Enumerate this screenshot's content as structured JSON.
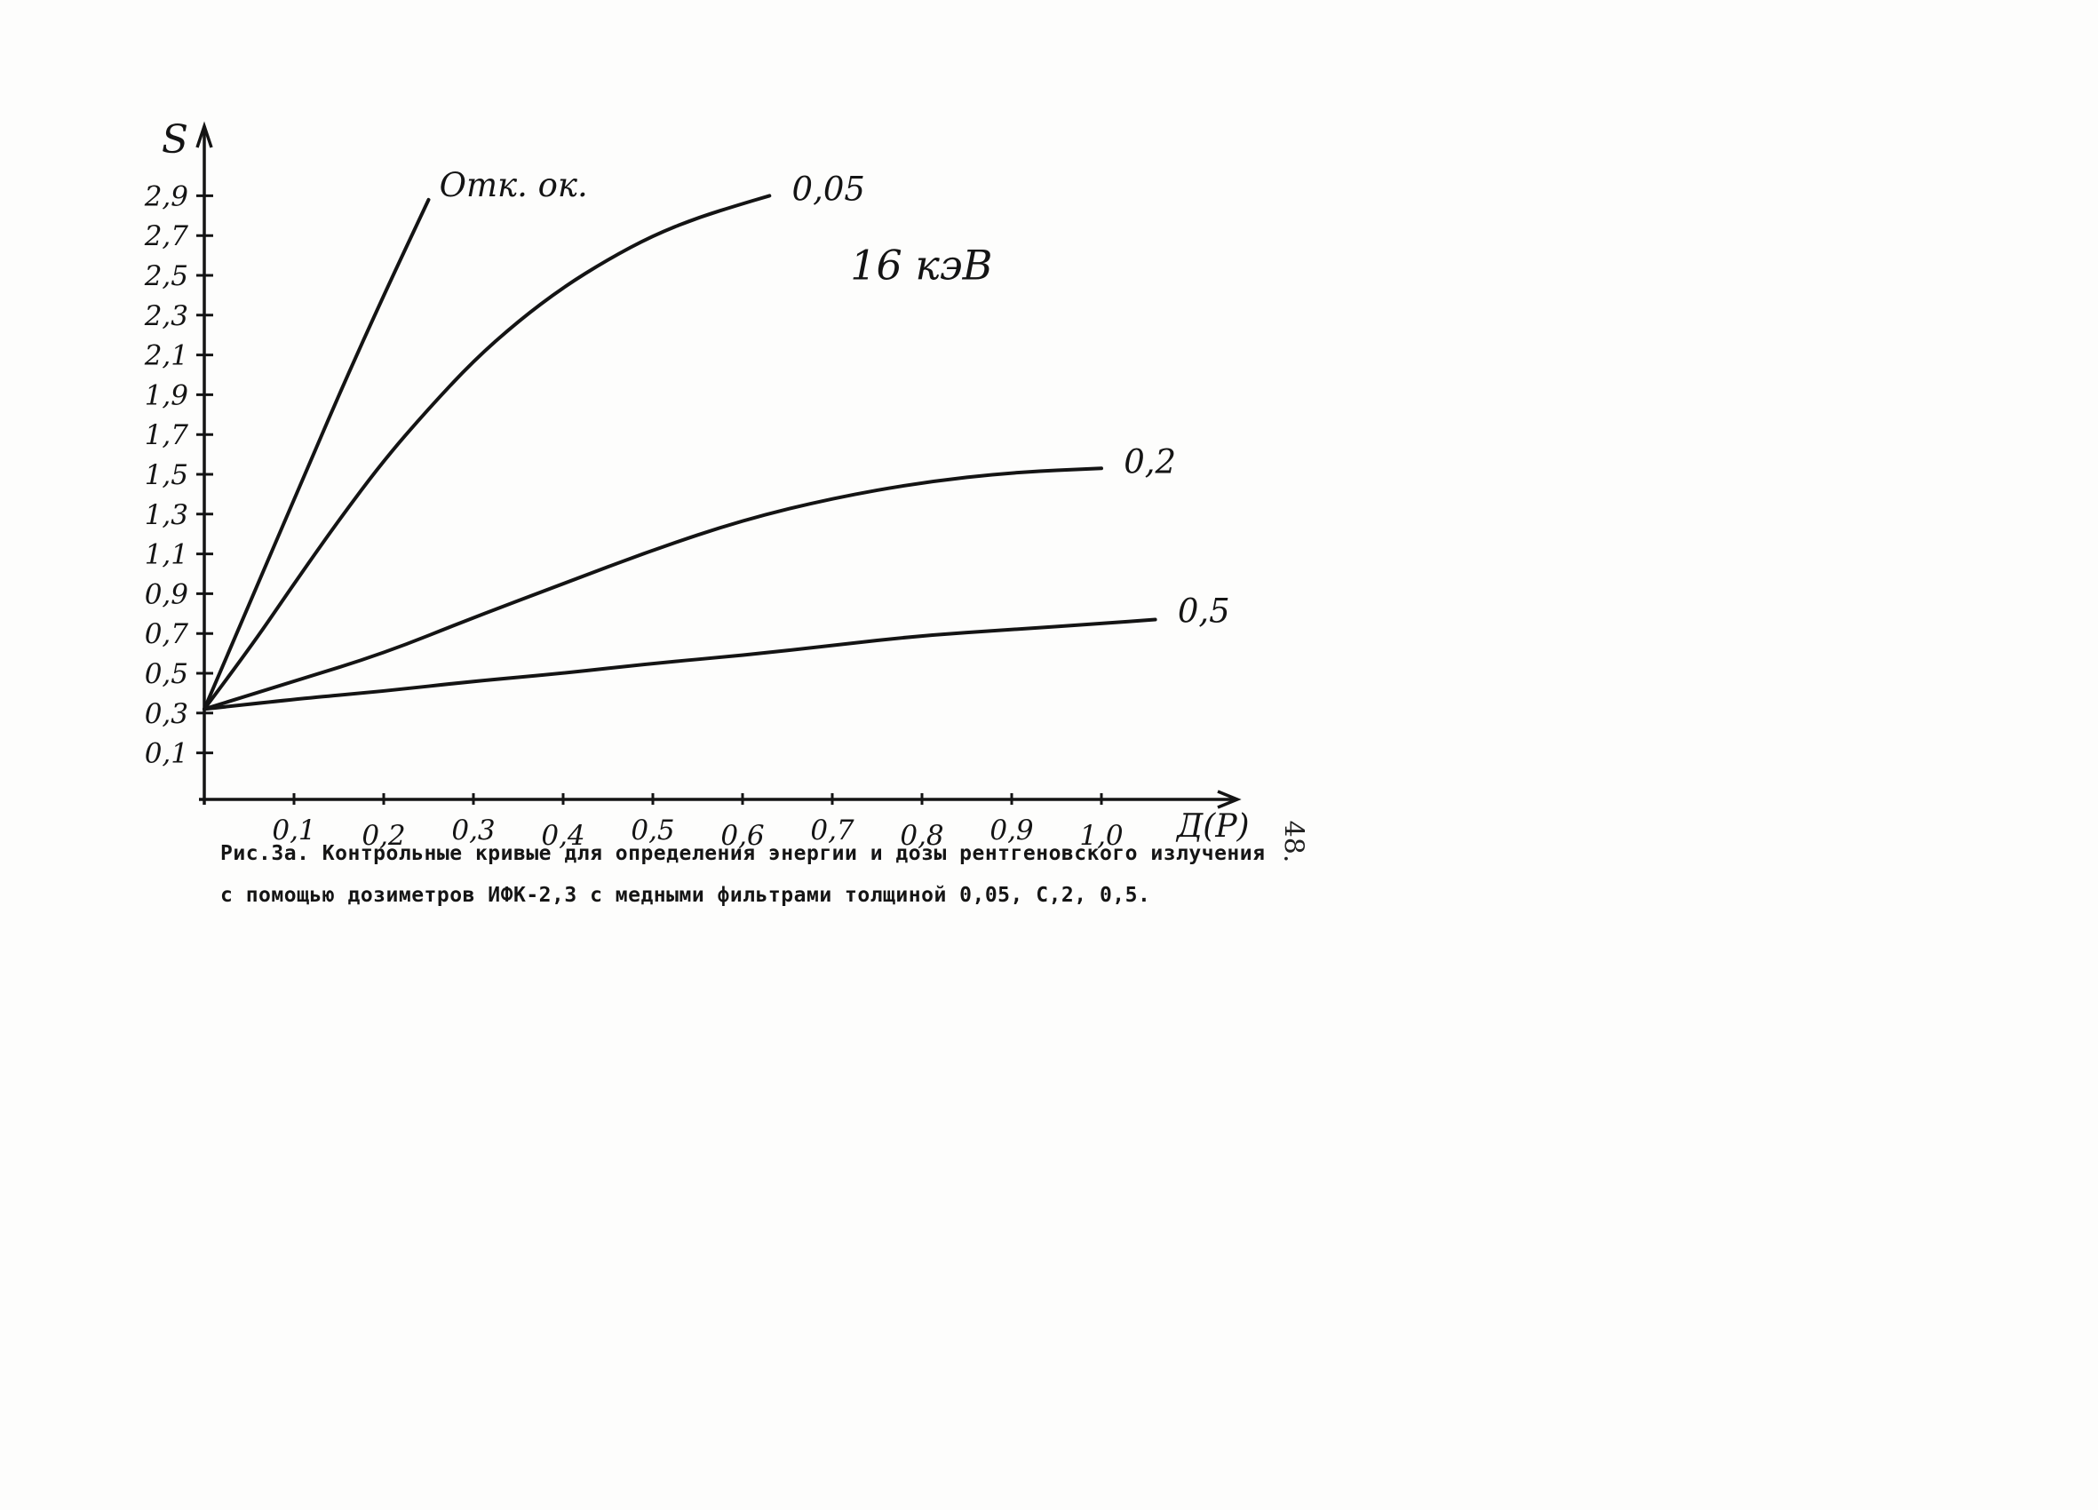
{
  "page": {
    "page_number": "48.",
    "caption_line1": "Рис.3а. Контрольные кривые для определения энергии и дозы рентгеновского излучения",
    "caption_line2": "с помощью дозиметров ИФК-2,3 с медными фильтрами толщиной 0,05, С,2, 0,5."
  },
  "chart_data": {
    "type": "line",
    "title": "",
    "annotation": "16 кэВ",
    "annotation_x": 0.72,
    "annotation_y": 2.48,
    "xlabel": "Д(Р)",
    "ylabel": "S",
    "xlim": [
      0,
      1.15
    ],
    "ylim": [
      0,
      3.1
    ],
    "grid": false,
    "legend_position": "inline-labels",
    "ink_color": "#141414",
    "x_tick_values": [
      0.1,
      0.2,
      0.3,
      0.4,
      0.5,
      0.6,
      0.7,
      0.8,
      0.9,
      1.0
    ],
    "x_tick_labels": [
      "0,1",
      "0,2",
      "0,3",
      "0,4",
      "0,5",
      "0,6",
      "0,7",
      "0,8",
      "0,9",
      "1,0"
    ],
    "y_tick_values": [
      0.1,
      0.3,
      0.5,
      0.7,
      0.9,
      1.1,
      1.3,
      1.5,
      1.7,
      1.9,
      2.1,
      2.3,
      2.5,
      2.7,
      2.9
    ],
    "y_tick_labels": [
      "0,1",
      "0,3",
      "0,5",
      "0,7",
      "0,9",
      "1,1",
      "1,3",
      "1,5",
      "1,7",
      "1,9",
      "2,1",
      "2,3",
      "2,5",
      "2,7",
      "2,9"
    ],
    "series": [
      {
        "name": "Отк. ок.",
        "label": "Отк. ок.",
        "label_x": 0.262,
        "label_y": 2.95,
        "x": [
          0,
          0.05,
          0.1,
          0.15,
          0.2,
          0.25
        ],
        "y": [
          0.32,
          0.85,
          1.37,
          1.9,
          2.4,
          2.88
        ]
      },
      {
        "name": "0,05",
        "label": "0,05",
        "label_x": 0.655,
        "label_y": 2.93,
        "x": [
          0,
          0.05,
          0.1,
          0.15,
          0.2,
          0.25,
          0.3,
          0.35,
          0.4,
          0.45,
          0.5,
          0.55,
          0.6,
          0.63
        ],
        "y": [
          0.32,
          0.62,
          0.95,
          1.27,
          1.57,
          1.83,
          2.07,
          2.27,
          2.44,
          2.58,
          2.7,
          2.79,
          2.86,
          2.9
        ]
      },
      {
        "name": "0,2",
        "label": "0,2",
        "label_x": 1.025,
        "label_y": 1.56,
        "x": [
          0,
          0.1,
          0.2,
          0.3,
          0.4,
          0.5,
          0.6,
          0.7,
          0.8,
          0.9,
          1.0
        ],
        "y": [
          0.32,
          0.46,
          0.6,
          0.78,
          0.95,
          1.12,
          1.27,
          1.38,
          1.46,
          1.51,
          1.53
        ]
      },
      {
        "name": "0,5",
        "label": "0,5",
        "label_x": 1.085,
        "label_y": 0.81,
        "x": [
          0,
          0.1,
          0.2,
          0.3,
          0.4,
          0.5,
          0.6,
          0.7,
          0.8,
          0.9,
          1.0,
          1.06
        ],
        "y": [
          0.32,
          0.37,
          0.41,
          0.46,
          0.5,
          0.55,
          0.59,
          0.64,
          0.69,
          0.72,
          0.75,
          0.77
        ]
      }
    ]
  }
}
